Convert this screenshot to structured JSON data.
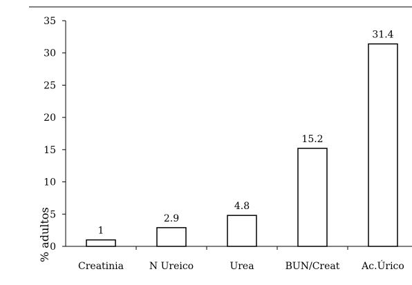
{
  "chart_data": {
    "type": "bar",
    "categories": [
      "Creatinia",
      "N Ureico",
      "Urea",
      "BUN/Creat",
      "Ac.Úrico"
    ],
    "values": [
      1,
      2.9,
      4.8,
      15.2,
      31.4
    ],
    "data_labels": [
      "1",
      "2.9",
      "4.8",
      "15.2",
      "31.4"
    ],
    "xlabel": "",
    "ylabel": "% adultos",
    "ylim": [
      0,
      35
    ],
    "yticks": [
      0,
      5,
      10,
      15,
      20,
      25,
      30,
      35
    ],
    "grid": false,
    "legend": "none",
    "bar_fill": "#ffffff",
    "bar_stroke": "#000000"
  }
}
